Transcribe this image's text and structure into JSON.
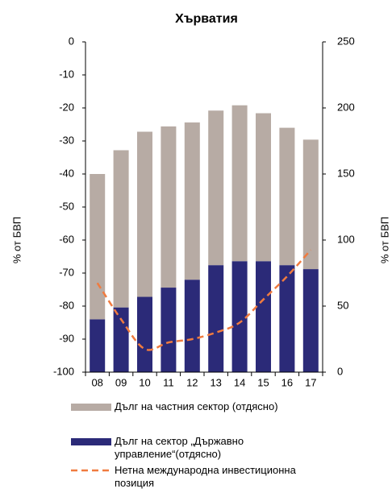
{
  "chart_data": {
    "type": "bar",
    "title": "Хърватия",
    "y_label": "% от БВП",
    "y2_label": "% от БВП",
    "categories": [
      "08",
      "09",
      "10",
      "11",
      "12",
      "13",
      "14",
      "15",
      "16",
      "17"
    ],
    "series": [
      {
        "name": "Дълг на частния сектор (отдясно)",
        "color": "#b7aba4",
        "axis": "y2",
        "type": "bar",
        "values": [
          110,
          119,
          125,
          122,
          119,
          117,
          118,
          112,
          104,
          98
        ]
      },
      {
        "name": "Дълг на сектор „Държавно управление“(отдясно)",
        "color": "#2b2a78",
        "axis": "y2",
        "type": "bar",
        "values": [
          40,
          49,
          57,
          64,
          70,
          81,
          84,
          84,
          81,
          78
        ]
      },
      {
        "name": "Нетна международна инвестиционна позиция",
        "color": "#f07b3f",
        "axis": "y",
        "type": "line",
        "values": [
          -73,
          -84,
          -93,
          -91,
          -90,
          -88,
          -85,
          -78,
          -71,
          -63
        ]
      }
    ],
    "ylim": [
      -100,
      0
    ],
    "yticks": [
      0,
      -10,
      -20,
      -30,
      -40,
      -50,
      -60,
      -70,
      -80,
      -90,
      -100
    ],
    "y2lim": [
      0,
      250
    ],
    "y2ticks": [
      0,
      50,
      100,
      150,
      200,
      250
    ],
    "grid": false
  }
}
